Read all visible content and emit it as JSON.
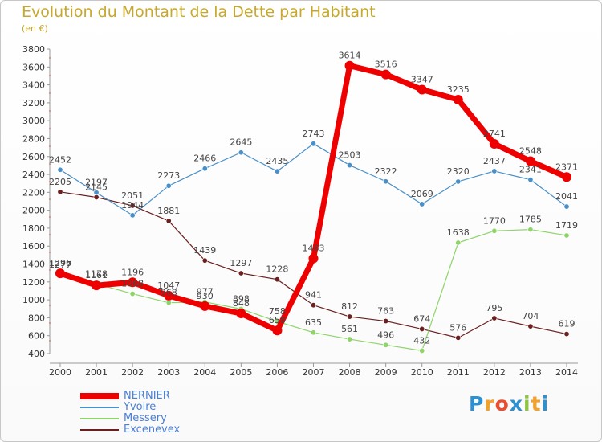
{
  "chart_data": {
    "type": "line",
    "title": "Evolution du Montant de la Dette par Habitant",
    "subtitle": "(en €)",
    "categories": [
      "2000",
      "2001",
      "2002",
      "2003",
      "2004",
      "2005",
      "2006",
      "2007",
      "2008",
      "2009",
      "2010",
      "2011",
      "2012",
      "2013",
      "2014"
    ],
    "ylim": [
      400,
      3800
    ],
    "yticks": [
      400,
      600,
      800,
      1000,
      1200,
      1400,
      1600,
      1800,
      2000,
      2200,
      2400,
      2600,
      2800,
      3000,
      3200,
      3400,
      3600,
      3800
    ],
    "grid": false,
    "legend_position": "bottom-left",
    "series": [
      {
        "name": "Excenevex",
        "color": "#6b1f1f",
        "values": [
          2205,
          2145,
          2051,
          1881,
          1439,
          1297,
          1228,
          941,
          812,
          763,
          674,
          576,
          795,
          704,
          619
        ]
      },
      {
        "name": "Messery",
        "color": "#8fd46a",
        "values": [
          1277,
          1178,
          1068,
          968,
          977,
          898,
          758,
          635,
          561,
          496,
          432,
          1638,
          1770,
          1785,
          1719
        ]
      },
      {
        "name": "Yvoire",
        "color": "#4a90c8",
        "values": [
          2452,
          2197,
          1944,
          2273,
          2466,
          2645,
          2435,
          2743,
          2503,
          2322,
          2069,
          2320,
          2437,
          2341,
          2041
        ]
      },
      {
        "name": "NERNIER",
        "color": "#ee0000",
        "values": [
          1296,
          1161,
          1196,
          1047,
          930,
          848,
          658,
          1463,
          3614,
          3516,
          3347,
          3235,
          2741,
          2548,
          2371
        ]
      }
    ]
  },
  "legend": [
    {
      "name": "NERNIER",
      "color": "#ee0000",
      "text_color": "#4a7fd6"
    },
    {
      "name": "Yvoire",
      "color": "#4a90c8",
      "text_color": "#4a7fd6"
    },
    {
      "name": "Messery",
      "color": "#8fd46a",
      "text_color": "#4a7fd6"
    },
    {
      "name": "Excenevex",
      "color": "#6b1f1f",
      "text_color": "#4a7fd6"
    }
  ],
  "logo": {
    "letters": [
      "P",
      "r",
      "o",
      "x",
      "i",
      "t",
      "i"
    ],
    "colors": [
      "#2e8fd1",
      "#f2a12a",
      "#e94f2e",
      "#2e8fd1",
      "#8cc63f",
      "#f2a12a",
      "#2e8fd1"
    ]
  }
}
